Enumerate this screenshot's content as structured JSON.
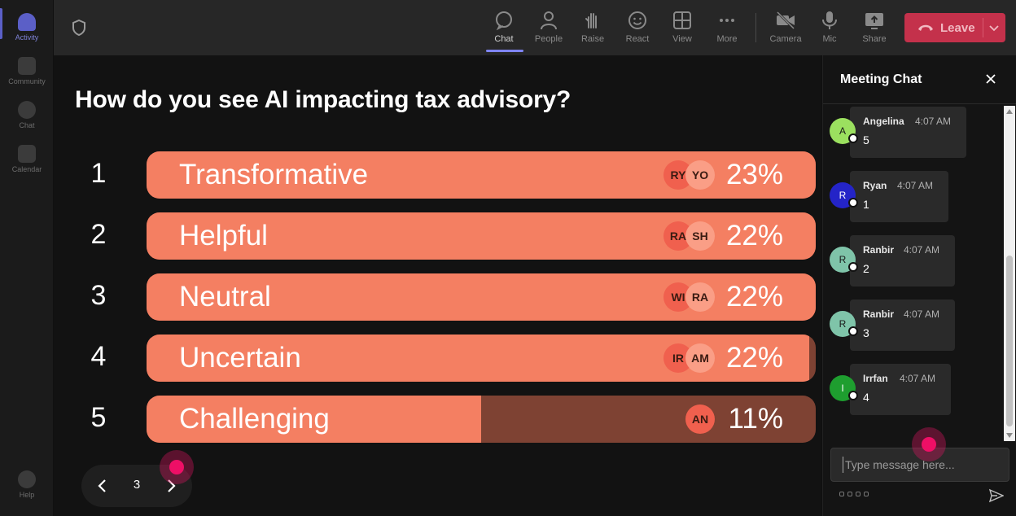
{
  "rail": {
    "items": [
      {
        "label": "Activity",
        "active": true
      },
      {
        "label": "Community"
      },
      {
        "label": "Chat"
      },
      {
        "label": "Calendar"
      }
    ],
    "help_label": "Help"
  },
  "toolbar": {
    "buttons": [
      {
        "label": "Chat",
        "icon": "chat-bubble-icon",
        "active": true
      },
      {
        "label": "People",
        "icon": "people-icon"
      },
      {
        "label": "Raise",
        "icon": "raise-hand-icon"
      },
      {
        "label": "React",
        "icon": "smiley-icon"
      },
      {
        "label": "View",
        "icon": "grid-view-icon"
      },
      {
        "label": "More",
        "icon": "more-dots-icon"
      },
      {
        "label": "Camera",
        "icon": "camera-off-icon"
      },
      {
        "label": "Mic",
        "icon": "mic-icon"
      },
      {
        "label": "Share",
        "icon": "share-screen-icon"
      }
    ],
    "leave_label": "Leave",
    "leave_color": "#c4314b"
  },
  "poll": {
    "question": "How do you see AI impacting tax advisory?",
    "options": [
      {
        "num": "1",
        "label": "Transformative",
        "pct": "23%",
        "fill": 1.0,
        "avatars": [
          "RY",
          "YO"
        ]
      },
      {
        "num": "2",
        "label": "Helpful",
        "pct": "22%",
        "fill": 1.0,
        "avatars": [
          "RA",
          "SH"
        ]
      },
      {
        "num": "3",
        "label": "Neutral",
        "pct": "22%",
        "fill": 1.0,
        "avatars": [
          "WI",
          "RA"
        ]
      },
      {
        "num": "4",
        "label": "Uncertain",
        "pct": "22%",
        "fill": 0.99,
        "avatars": [
          "IR",
          "AM"
        ]
      },
      {
        "num": "5",
        "label": "Challenging",
        "pct": "11%",
        "fill": 0.5,
        "avatars": [
          "AN"
        ]
      }
    ],
    "bar_color": "#f47f62",
    "track_color": "#7e4233",
    "page": "3"
  },
  "chat": {
    "title": "Meeting Chat",
    "messages": [
      {
        "initial": "A",
        "name": "Angelina",
        "time": "4:07 AM",
        "text": "5",
        "color": "#9be05f"
      },
      {
        "initial": "R",
        "name": "Ryan",
        "time": "4:07 AM",
        "text": "1",
        "color": "#2424c8"
      },
      {
        "initial": "R",
        "name": "Ranbir",
        "time": "4:07 AM",
        "text": "2",
        "color": "#7fc4a9"
      },
      {
        "initial": "R",
        "name": "Ranbir",
        "time": "4:07 AM",
        "text": "3",
        "color": "#7fc4a9"
      },
      {
        "initial": "I",
        "name": "Irrfan",
        "time": "4:07 AM",
        "text": "4",
        "color": "#1e9e2f"
      }
    ],
    "compose_placeholder": "Type message here..."
  }
}
